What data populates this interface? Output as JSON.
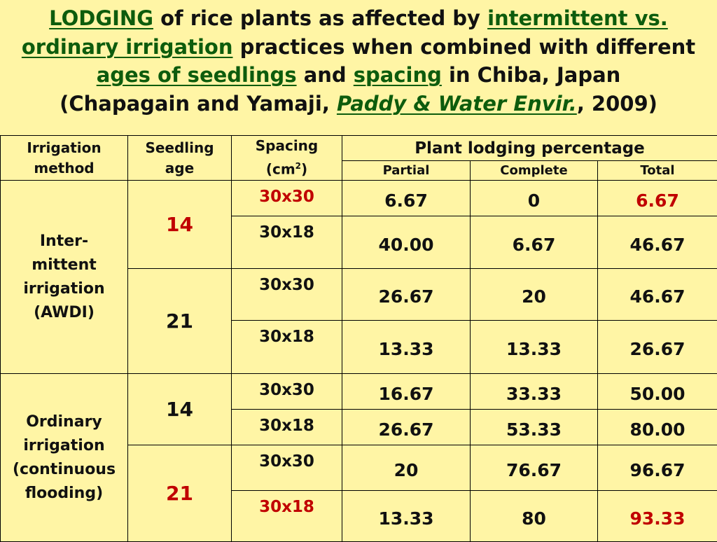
{
  "title": {
    "t1": "LODGING",
    "t2": " of rice plants as affected by ",
    "t3": "intermittent vs.",
    "t4": "ordinary irrigation",
    "t5": " practices when combined with different",
    "t6": "ages of seedlings",
    "t7": " and ",
    "t8": "spacing",
    "t9": " in Chiba, Japan",
    "t10": "(Chapagain and Yamaji, ",
    "t11": "Paddy & Water Envir.",
    "t12": ", 2009)"
  },
  "table": {
    "headers": {
      "irrigation_1": "Irrigation",
      "irrigation_2": "method",
      "seedling_1": "Seedling",
      "seedling_2": "age",
      "spacing_1": "Spacing",
      "spacing_2": "(cm",
      "spacing_sup": "2",
      "spacing_3": ")",
      "lodging": "Plant lodging percentage",
      "partial": "Partial",
      "complete": "Complete",
      "total": "Total"
    },
    "groups": [
      {
        "method_lines": [
          "Inter-",
          "mittent",
          "irrigation",
          "(AWDI)"
        ],
        "ages": [
          {
            "age": "14",
            "rows": [
              {
                "spacing": "30x30",
                "partial": "6.67",
                "complete": "0",
                "total": "6.67"
              },
              {
                "spacing": "30x18",
                "partial": "40.00",
                "complete": "6.67",
                "total": "46.67"
              }
            ]
          },
          {
            "age": "21",
            "rows": [
              {
                "spacing": "30x30",
                "partial": "26.67",
                "complete": "20",
                "total": "46.67"
              },
              {
                "spacing": "30x18",
                "partial": "13.33",
                "complete": "13.33",
                "total": "26.67"
              }
            ]
          }
        ]
      },
      {
        "method_lines": [
          "Ordinary",
          "irrigation",
          "(continuous",
          "flooding)"
        ],
        "ages": [
          {
            "age": "14",
            "rows": [
              {
                "spacing": "30x30",
                "partial": "16.67",
                "complete": "33.33",
                "total": "50.00"
              },
              {
                "spacing": "30x18",
                "partial": "26.67",
                "complete": "53.33",
                "total": "80.00"
              }
            ]
          },
          {
            "age": "21",
            "rows": [
              {
                "spacing": "30x30",
                "partial": "20",
                "complete": "76.67",
                "total": "96.67"
              },
              {
                "spacing": "30x18",
                "partial": "13.33",
                "complete": "80",
                "total": "93.33"
              }
            ]
          }
        ]
      }
    ]
  },
  "colors": {
    "background": "#FFF5A5",
    "highlight_red": "#C00000",
    "title_green": "#0D5C0D"
  }
}
